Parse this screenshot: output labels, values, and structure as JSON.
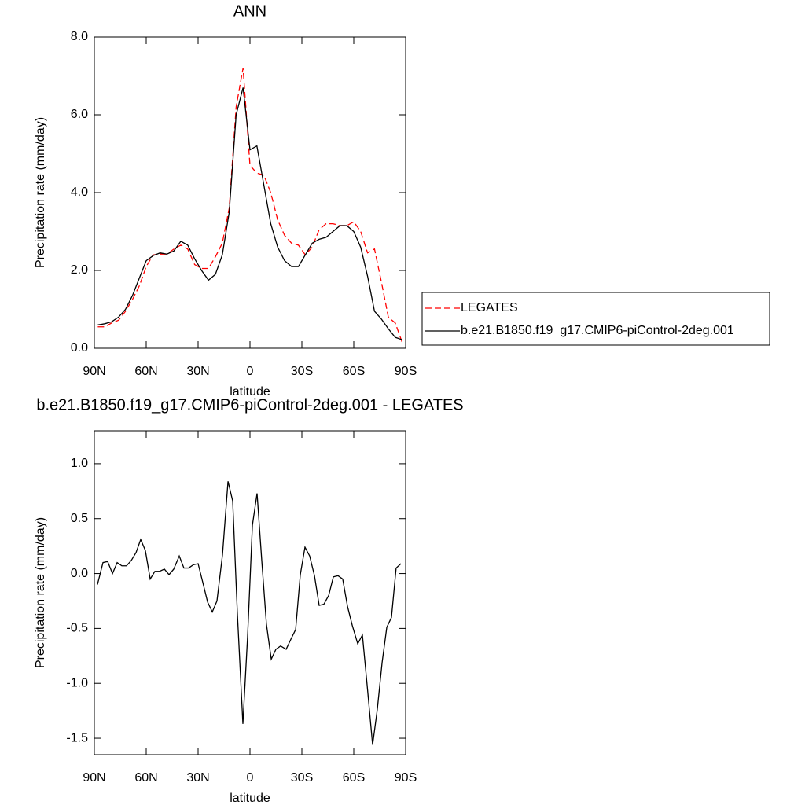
{
  "chart_data": [
    {
      "type": "line",
      "title": "ANN",
      "xlabel": "latitude",
      "ylabel": "Precipitation rate (mm/day)",
      "x": [
        88,
        84,
        80,
        76,
        72,
        68,
        64,
        60,
        56,
        52,
        48,
        44,
        40,
        36,
        32,
        28,
        24,
        20,
        16,
        12,
        8,
        4,
        0,
        -4,
        -8,
        -12,
        -16,
        -20,
        -24,
        -28,
        -32,
        -36,
        -40,
        -44,
        -48,
        -52,
        -56,
        -60,
        -64,
        -68,
        -72,
        -76,
        -80,
        -84,
        -88
      ],
      "series": [
        {
          "name": "LEGATES",
          "color": "#ff0000",
          "linestyle": "dashed",
          "values": [
            0.55,
            0.55,
            0.65,
            0.72,
            0.95,
            1.25,
            1.6,
            2.1,
            2.4,
            2.42,
            2.42,
            2.55,
            2.65,
            2.55,
            2.15,
            2.05,
            2.05,
            2.35,
            2.7,
            3.6,
            6.2,
            7.2,
            4.7,
            4.5,
            4.45,
            4.0,
            3.3,
            2.9,
            2.7,
            2.65,
            2.4,
            2.6,
            3.05,
            3.2,
            3.2,
            3.15,
            3.15,
            3.25,
            3.0,
            2.45,
            2.55,
            1.7,
            0.8,
            0.65,
            0.15
          ]
        },
        {
          "name": "b.e21.B1850.f19_g17.CMIP6-piControl-2deg.001",
          "color": "#000000",
          "linestyle": "solid",
          "values": [
            0.6,
            0.63,
            0.68,
            0.8,
            1.0,
            1.35,
            1.8,
            2.25,
            2.38,
            2.45,
            2.42,
            2.5,
            2.75,
            2.65,
            2.3,
            2.0,
            1.75,
            1.9,
            2.4,
            3.5,
            6.0,
            6.7,
            5.1,
            5.2,
            4.2,
            3.2,
            2.6,
            2.25,
            2.1,
            2.1,
            2.4,
            2.7,
            2.8,
            2.85,
            3.0,
            3.15,
            3.15,
            3.0,
            2.6,
            1.85,
            0.95,
            0.75,
            0.5,
            0.28,
            0.22
          ]
        }
      ],
      "xlim": [
        90,
        -90
      ],
      "xticks": [
        {
          "value": 90,
          "label": "90N"
        },
        {
          "value": 60,
          "label": "60N"
        },
        {
          "value": 30,
          "label": "30N"
        },
        0,
        {
          "value": -30,
          "label": "30S"
        },
        {
          "value": -60,
          "label": "60S"
        },
        {
          "value": -90,
          "label": "90S"
        }
      ],
      "ylim": [
        0,
        8
      ],
      "yticks": [
        {
          "value": 0,
          "label": "0.0"
        },
        {
          "value": 2,
          "label": "2.0"
        },
        {
          "value": 4,
          "label": "4.0"
        },
        {
          "value": 6,
          "label": "6.0"
        },
        {
          "value": 8,
          "label": "8.0"
        }
      ],
      "legend": "right"
    },
    {
      "type": "line",
      "title": "b.e21.B1850.f19_g17.CMIP6-piControl-2deg.001 - LEGATES",
      "xlabel": "latitude",
      "ylabel": "Precipitation rate (mm/day)",
      "x": [
        88.2,
        85.0,
        82.3,
        79.5,
        76.8,
        74.1,
        71.4,
        68.6,
        65.9,
        63.2,
        60.5,
        57.7,
        55.0,
        52.3,
        49.5,
        46.8,
        44.1,
        40.9,
        38.2,
        35.5,
        32.7,
        30.0,
        27.3,
        24.5,
        21.8,
        19.1,
        15.9,
        12.7,
        10.0,
        7.3,
        4.1,
        1.4,
        -1.4,
        -4.1,
        -6.8,
        -9.5,
        -12.3,
        -15.0,
        -17.7,
        -20.9,
        -23.6,
        -26.4,
        -29.1,
        -31.8,
        -34.5,
        -37.3,
        -40.0,
        -42.7,
        -45.5,
        -48.2,
        -50.9,
        -53.6,
        -56.4,
        -59.1,
        -62.3,
        -65.0,
        -67.7,
        -70.9,
        -73.6,
        -76.4,
        -79.1,
        -81.8,
        -84.5,
        -87.3
      ],
      "values": [
        -0.1,
        0.1,
        0.11,
        0.0,
        0.1,
        0.07,
        0.07,
        0.12,
        0.19,
        0.31,
        0.21,
        -0.05,
        0.02,
        0.02,
        0.04,
        -0.01,
        0.04,
        0.16,
        0.05,
        0.05,
        0.08,
        0.09,
        -0.08,
        -0.26,
        -0.35,
        -0.25,
        0.17,
        0.84,
        0.66,
        -0.36,
        -1.37,
        -0.58,
        0.44,
        0.73,
        0.12,
        -0.46,
        -0.78,
        -0.69,
        -0.66,
        -0.69,
        -0.6,
        -0.51,
        -0.01,
        0.24,
        0.16,
        -0.02,
        -0.29,
        -0.28,
        -0.2,
        -0.03,
        -0.02,
        -0.05,
        -0.3,
        -0.47,
        -0.64,
        -0.56,
        -1.01,
        -1.56,
        -1.24,
        -0.81,
        -0.49,
        -0.4,
        0.05,
        0.09
      ],
      "color": "#000000",
      "xlim": [
        90,
        -90
      ],
      "xticks": [
        {
          "value": 90,
          "label": "90N"
        },
        {
          "value": 60,
          "label": "60N"
        },
        {
          "value": 30,
          "label": "30N"
        },
        0,
        {
          "value": -30,
          "label": "30S"
        },
        {
          "value": -60,
          "label": "60S"
        },
        {
          "value": -90,
          "label": "90S"
        }
      ],
      "ylim": [
        -1.65,
        1.3
      ],
      "yticks": [
        {
          "value": 1,
          "label": "1.0"
        },
        0.5,
        {
          "value": 0,
          "label": "0.0"
        },
        -0.5,
        {
          "value": -1,
          "label": "-1.0"
        },
        -1.5
      ]
    }
  ]
}
